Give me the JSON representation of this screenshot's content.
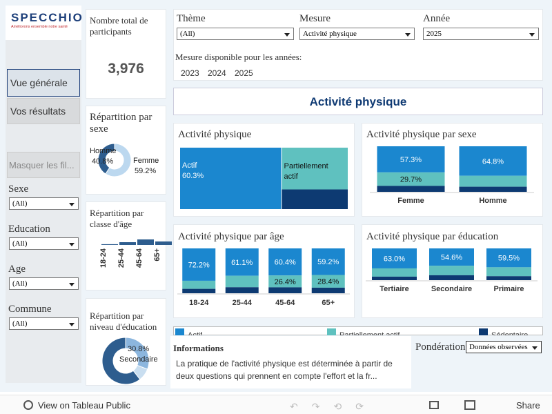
{
  "logo": {
    "name": "SPECCHIO",
    "tagline": "Améliorons ensemble notre santé"
  },
  "nav": [
    "Vue générale",
    "Vos résultats"
  ],
  "filters_toggle": "Masquer les fil...",
  "filters": [
    {
      "label": "Sexe",
      "value": "(All)"
    },
    {
      "label": "Education",
      "value": "(All)"
    },
    {
      "label": "Age",
      "value": "(All)"
    },
    {
      "label": "Commune",
      "value": "(All)"
    }
  ],
  "kpi": {
    "label": "Nombre total de participants",
    "value": "3,976"
  },
  "selectors": [
    {
      "label": "Thème",
      "value": "(All)"
    },
    {
      "label": "Mesure",
      "value": "Activité physique"
    },
    {
      "label": "Année",
      "value": "2025"
    }
  ],
  "years_label": "Mesure disponible pour les années:",
  "years": [
    "2023",
    "2024",
    "2025"
  ],
  "banner": "Activité physique",
  "sex_donut": {
    "title": "Répartition par sexe",
    "segments": [
      {
        "name": "Homme",
        "value": 40.8,
        "label": "40.8%",
        "color": "#2e5d8e"
      },
      {
        "name": "Femme",
        "value": 59.2,
        "label": "59.2%",
        "color": "#bcd8ef"
      }
    ]
  },
  "age_bars": {
    "title": "Répartition par classe d'âge",
    "categories": [
      "18-24",
      "25-44",
      "45-64",
      "65+"
    ],
    "values": [
      6,
      22,
      44,
      28
    ],
    "color": "#2e5d8e"
  },
  "edu_donut": {
    "title": "Répartition par niveau d'éducation",
    "segments": [
      {
        "name": "Secondaire",
        "value": 30.8,
        "label": "30.8%",
        "color": "#8cb6de"
      },
      {
        "value": 8.7,
        "color": "#c9def0"
      },
      {
        "value": 60.5,
        "color": "#2e5d8e"
      }
    ]
  },
  "treemap": {
    "title": "Activité physique",
    "items": [
      {
        "name": "Actif",
        "value": 60.3,
        "label": "60.3%",
        "color": "#1b87cf"
      },
      {
        "name": "Partiellement actif",
        "value": 27.0,
        "color": "#5fc1bf"
      },
      {
        "value": 12.7,
        "color": "#0d3a72"
      }
    ]
  },
  "by_sex": {
    "title": "Activité physique par sexe",
    "categories": [
      "Femme",
      "Homme"
    ],
    "series": [
      {
        "color": "#1b87cf",
        "values": [
          57.3,
          64.8
        ],
        "value_labels": [
          "57.3%",
          "64.8%"
        ]
      },
      {
        "color": "#5fc1bf",
        "values": [
          29.7,
          24.0
        ],
        "value_labels": [
          "29.7%",
          null
        ]
      },
      {
        "color": "#0d3a72",
        "values": [
          13.0,
          11.2
        ],
        "value_labels": [
          null,
          null
        ]
      }
    ]
  },
  "by_age": {
    "title": "Activité physique par âge",
    "categories": [
      "18-24",
      "25-44",
      "45-64",
      "65+"
    ],
    "series": [
      {
        "color": "#1b87cf",
        "values": [
          72.2,
          61.1,
          60.4,
          59.2
        ],
        "value_labels": [
          "72.2%",
          "61.1%",
          "60.4%",
          "59.2%"
        ]
      },
      {
        "color": "#5fc1bf",
        "values": [
          18.0,
          25.5,
          26.4,
          28.4
        ],
        "value_labels": [
          null,
          null,
          "26.4%",
          "28.4%"
        ]
      },
      {
        "color": "#0d3a72",
        "values": [
          9.8,
          13.4,
          13.2,
          12.4
        ],
        "value_labels": [
          null,
          null,
          null,
          null
        ]
      }
    ]
  },
  "by_education": {
    "title": "Activité physique par éducation",
    "categories": [
      "Tertiaire",
      "Secondaire",
      "Primaire"
    ],
    "series": [
      {
        "color": "#1b87cf",
        "values": [
          63.0,
          54.6,
          59.5
        ],
        "value_labels": [
          "63.0%",
          "54.6%",
          "59.5%"
        ]
      },
      {
        "color": "#5fc1bf",
        "values": [
          26.0,
          30.0,
          28.0
        ],
        "value_labels": [
          null,
          null,
          null
        ]
      },
      {
        "color": "#0d3a72",
        "values": [
          11.0,
          15.4,
          12.5
        ],
        "value_labels": [
          null,
          null,
          null
        ]
      }
    ]
  },
  "legend": [
    {
      "name": "Actif",
      "color": "#1b87cf"
    },
    {
      "name": "Partiellement actif",
      "color": "#5fc1bf"
    },
    {
      "name": "Sédentaire",
      "color": "#0d3a72"
    }
  ],
  "info": {
    "title": "Informations",
    "text": "La pratique de l'activité physique est déterminée à partir de deux questions qui prennent en compte l'effort et la fr..."
  },
  "weighting": {
    "label": "Pondération",
    "value": "Données observées"
  },
  "toolbar": {
    "view": "View on Tableau Public",
    "share": "Share"
  }
}
